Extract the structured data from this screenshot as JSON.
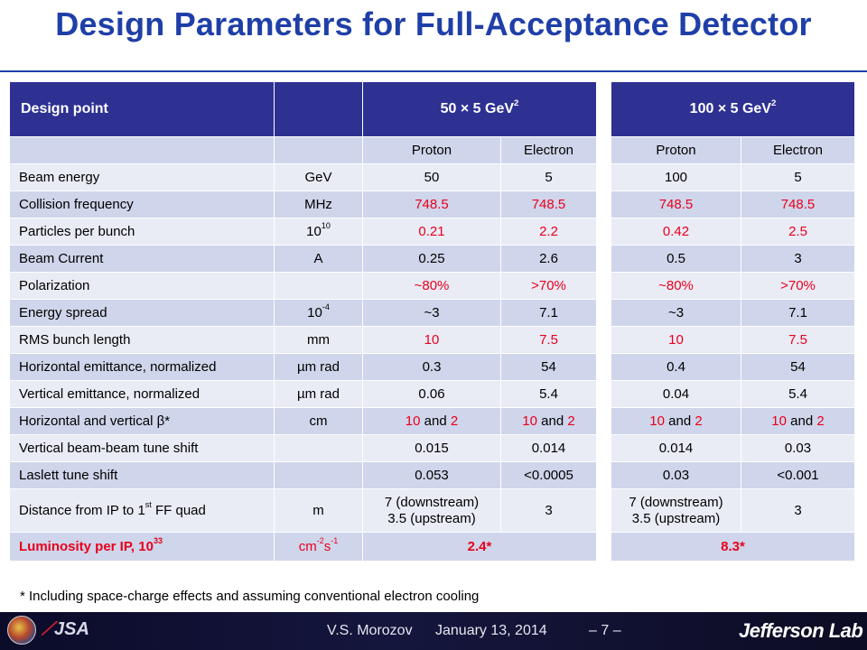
{
  "title": "Design Parameters for Full-Acceptance Detector",
  "header": {
    "design_point": "Design point",
    "group1_base": "50 × 5 GeV",
    "group2_base": "100 × 5 GeV",
    "group_sup": "2"
  },
  "subheader": [
    "Proton",
    "Electron",
    "Proton",
    "Electron"
  ],
  "rows": [
    {
      "label": "Beam energy",
      "unit": "GeV",
      "values": [
        "50",
        "5",
        "100",
        "5"
      ]
    },
    {
      "label": "Collision frequency",
      "unit": "MHz",
      "values": [
        "748.5",
        "748.5",
        "748.5",
        "748.5"
      ]
    },
    {
      "label": "Particles per bunch",
      "unit_base": "10",
      "unit_sup": "10",
      "values": [
        "0.21",
        "2.2",
        "0.42",
        "2.5"
      ]
    },
    {
      "label": "Beam Current",
      "unit": "A",
      "values": [
        "0.25",
        "2.6",
        "0.5",
        "3"
      ]
    },
    {
      "label": "Polarization",
      "unit": "",
      "values": [
        "~80%",
        ">70%",
        "~80%",
        ">70%"
      ]
    },
    {
      "label": "Energy spread",
      "unit_base": "10",
      "unit_sup": "-4",
      "values": [
        "~3",
        "7.1",
        "~3",
        "7.1"
      ]
    },
    {
      "label": "RMS bunch length",
      "unit": "mm",
      "values": [
        "10",
        "7.5",
        "10",
        "7.5"
      ]
    },
    {
      "label": "Horizontal emittance, normalized",
      "unit": "µm rad",
      "values": [
        "0.3",
        "54",
        "0.4",
        "54"
      ]
    },
    {
      "label": "Vertical emittance, normalized",
      "unit": "µm rad",
      "values": [
        "0.06",
        "5.4",
        "0.04",
        "5.4"
      ]
    },
    {
      "label": "Horizontal and vertical β*",
      "unit": "cm",
      "values_a": [
        "10",
        "10",
        "10",
        "10"
      ],
      "values_and": " and ",
      "values_b": [
        "2",
        "2",
        "2",
        "2"
      ]
    },
    {
      "label": "Vertical beam-beam tune shift",
      "unit": "",
      "values": [
        "0.015",
        "0.014",
        "0.014",
        "0.03"
      ]
    },
    {
      "label": "Laslett tune shift",
      "unit": "",
      "values": [
        "0.053",
        "<0.0005",
        "0.03",
        "<0.001"
      ]
    },
    {
      "label_base": "Distance from IP to 1",
      "label_sup": "st",
      "label_tail": " FF quad",
      "unit": "m",
      "values_line1": [
        "7 (downstream)",
        "3",
        "7 (downstream)",
        "3"
      ],
      "values_line2": [
        "3.5 (upstream)",
        "",
        "3.5 (upstream)",
        ""
      ]
    },
    {
      "label_base": "Luminosity per IP, 10",
      "label_sup": "33",
      "unit_base": "cm",
      "unit_sup1": "-2",
      "unit_mid": "s",
      "unit_sup2": "-1",
      "values": [
        "2.4*",
        "8.3*"
      ]
    }
  ],
  "footnote": "* Including space-charge effects and assuming conventional electron cooling",
  "footer": {
    "author": "V.S. Morozov",
    "date": "January 13, 2014",
    "page": "– 7 –",
    "logo_left_text": "JSA",
    "logo_right_text": "Jefferson Lab"
  },
  "colors": {
    "title": "#1f3fa8",
    "header_bg": "#2e3192",
    "row_odd": "#cfd5ea",
    "row_even": "#e9ebf5",
    "highlight_red": "#e8001c",
    "footer_bg": "#15163d"
  }
}
